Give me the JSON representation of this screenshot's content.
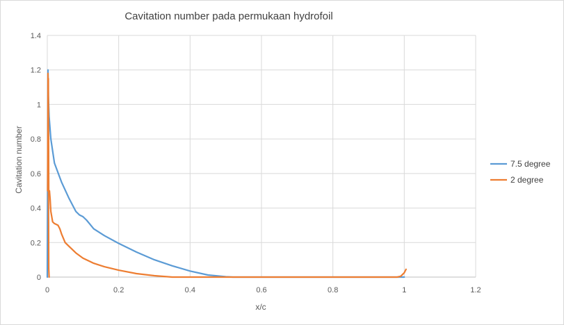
{
  "chart_data": {
    "type": "line",
    "title": "Cavitation number pada permukaan hydrofoil",
    "xlabel": "x/c",
    "ylabel": "Cavitation number",
    "xlim": [
      0,
      1.2
    ],
    "ylim": [
      0,
      1.4
    ],
    "x_ticks": [
      0,
      0.2,
      0.4,
      0.6,
      0.8,
      1,
      1.2
    ],
    "x_tick_labels": [
      "0",
      "0.2",
      "0.4",
      "0.6",
      "0.8",
      "1",
      "1.2"
    ],
    "y_ticks": [
      0,
      0.2,
      0.4,
      0.6,
      0.8,
      1,
      1.2,
      1.4
    ],
    "y_tick_labels": [
      "0",
      "0.2",
      "0.4",
      "0.6",
      "0.8",
      "1",
      "1.2",
      "1.4"
    ],
    "grid": true,
    "legend_position": "right",
    "series": [
      {
        "name": "7.5 degree",
        "color": "#5b9bd5",
        "x": [
          0,
          0.001,
          0.002,
          0.003,
          0.005,
          0.01,
          0.02,
          0.04,
          0.06,
          0.08,
          0.09,
          0.1,
          0.11,
          0.13,
          0.16,
          0.2,
          0.25,
          0.3,
          0.35,
          0.4,
          0.45,
          0.5,
          0.52,
          0.6,
          0.8,
          1.0
        ],
        "y": [
          0.0,
          0.6,
          1.2,
          1.05,
          0.93,
          0.8,
          0.66,
          0.55,
          0.46,
          0.38,
          0.36,
          0.35,
          0.33,
          0.28,
          0.24,
          0.195,
          0.145,
          0.1,
          0.065,
          0.035,
          0.012,
          0.002,
          0.0,
          0.0,
          0.0,
          0.0
        ]
      },
      {
        "name": "2 degree",
        "color": "#ed7d31",
        "x": [
          0.002,
          0.003,
          0.004,
          0.006,
          0.008,
          0.01,
          0.015,
          0.02,
          0.03,
          0.035,
          0.04,
          0.05,
          0.06,
          0.08,
          0.1,
          0.13,
          0.16,
          0.2,
          0.25,
          0.3,
          0.35,
          0.4,
          0.6,
          0.8,
          0.98,
          0.99,
          1.0,
          1.005
        ],
        "y": [
          0.55,
          1.15,
          0.48,
          0.5,
          0.45,
          0.38,
          0.32,
          0.31,
          0.3,
          0.28,
          0.25,
          0.2,
          0.18,
          0.14,
          0.11,
          0.08,
          0.06,
          0.04,
          0.02,
          0.008,
          0.0,
          0.0,
          0.0,
          0.0,
          0.0,
          0.005,
          0.025,
          0.045
        ]
      },
      {
        "name": "",
        "color": "#ed7d31",
        "x": [
          0.001,
          0.002,
          0.004,
          0.005
        ],
        "y": [
          0.5,
          1.18,
          0.05,
          0.0
        ]
      }
    ]
  }
}
